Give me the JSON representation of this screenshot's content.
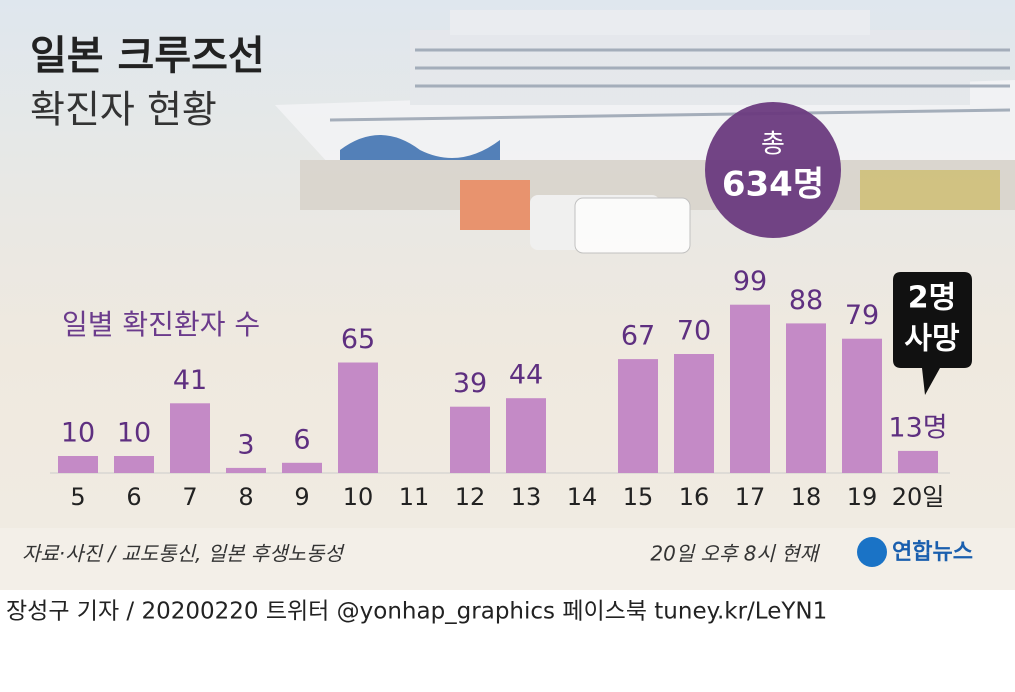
{
  "chart_data": {
    "type": "bar",
    "title": [
      "일본 크루즈선",
      "확진자 현황"
    ],
    "total_badge": [
      "총",
      "634명"
    ],
    "subtitle": "일별 확진환자 수",
    "categories": [
      "5",
      "6",
      "7",
      "8",
      "9",
      "10",
      "11",
      "12",
      "13",
      "14",
      "15",
      "16",
      "17",
      "18",
      "19",
      "20일"
    ],
    "values": [
      10,
      10,
      41,
      3,
      6,
      65,
      null,
      39,
      44,
      null,
      67,
      70,
      99,
      88,
      79,
      13
    ],
    "value_labels": [
      "10",
      "10",
      "41",
      "3",
      "6",
      "65",
      null,
      "39",
      "44",
      null,
      "67",
      "70",
      "99",
      "88",
      "79",
      "13명"
    ],
    "color": "#c48ac6",
    "annotation": [
      "2명",
      "사망"
    ],
    "source": "자료·사진 / 교도통신, 일본 후생노동성",
    "timestamp": "20일 오후 8시 현재",
    "logo": "연합뉴스",
    "footer": "장성구 기자 / 20200220  트위터 @yonhap_graphics  페이스북 tuney.kr/LeYN1"
  }
}
